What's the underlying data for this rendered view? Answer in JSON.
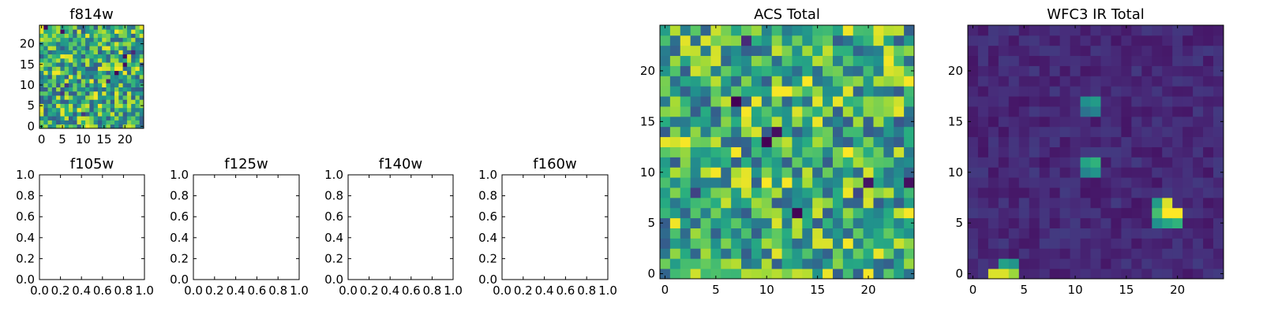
{
  "chart_data": [
    {
      "type": "heatmap",
      "title": "f814w",
      "colormap": "viridis",
      "grid_size": 25,
      "xlim": [
        -0.5,
        24.5
      ],
      "ylim": [
        -0.5,
        24.5
      ],
      "xticks": [
        0,
        5,
        10,
        15,
        20
      ],
      "yticks": [
        0,
        5,
        10,
        15,
        20
      ],
      "pattern": "uniform noise",
      "seed": 814
    },
    {
      "type": "empty",
      "title": "f105w",
      "xlim": [
        0,
        1
      ],
      "ylim": [
        0,
        1
      ],
      "xticks": [
        "0.0",
        "0.2",
        "0.4",
        "0.6",
        "0.8",
        "1.0"
      ],
      "yticks": [
        "0.0",
        "0.2",
        "0.4",
        "0.6",
        "0.8",
        "1.0"
      ]
    },
    {
      "type": "empty",
      "title": "f125w",
      "xlim": [
        0,
        1
      ],
      "ylim": [
        0,
        1
      ],
      "xticks": [
        "0.0",
        "0.2",
        "0.4",
        "0.6",
        "0.8",
        "1.0"
      ],
      "yticks": [
        "0.0",
        "0.2",
        "0.4",
        "0.6",
        "0.8",
        "1.0"
      ]
    },
    {
      "type": "empty",
      "title": "f140w",
      "xlim": [
        0,
        1
      ],
      "ylim": [
        0,
        1
      ],
      "xticks": [
        "0.0",
        "0.2",
        "0.4",
        "0.6",
        "0.8",
        "1.0"
      ],
      "yticks": [
        "0.0",
        "0.2",
        "0.4",
        "0.6",
        "0.8",
        "1.0"
      ]
    },
    {
      "type": "empty",
      "title": "f160w",
      "xlim": [
        0,
        1
      ],
      "ylim": [
        0,
        1
      ],
      "xticks": [
        "0.0",
        "0.2",
        "0.4",
        "0.6",
        "0.8",
        "1.0"
      ],
      "yticks": [
        "0.0",
        "0.2",
        "0.4",
        "0.6",
        "0.8",
        "1.0"
      ]
    },
    {
      "type": "heatmap",
      "title": "ACS Total",
      "colormap": "viridis",
      "grid_size": 25,
      "xlim": [
        -0.5,
        24.5
      ],
      "ylim": [
        -0.5,
        24.5
      ],
      "xticks": [
        0,
        5,
        10,
        15,
        20
      ],
      "yticks": [
        0,
        5,
        10,
        15,
        20
      ],
      "pattern": "uniform noise",
      "seed": 2077
    },
    {
      "type": "heatmap",
      "title": "WFC3 IR Total",
      "colormap": "viridis",
      "grid_size": 25,
      "xlim": [
        -0.5,
        24.5
      ],
      "ylim": [
        -0.5,
        24.5
      ],
      "xticks": [
        0,
        5,
        10,
        15,
        20
      ],
      "yticks": [
        0,
        5,
        10,
        15,
        20
      ],
      "pattern": "low background with point sources",
      "seed": 3160,
      "background_level": 0.12,
      "sources": [
        {
          "x": 12.5,
          "y": 17.5,
          "peak": 0.55,
          "shape": "2x2 block"
        },
        {
          "x": 12.5,
          "y": 11.5,
          "peak": 0.65,
          "shape": "2x2 block"
        },
        {
          "x": 19.0,
          "y": 6.0,
          "peak": 1.0,
          "shape": "plus"
        },
        {
          "x": 3.0,
          "y": 0.5,
          "peak": 0.95,
          "shape": "bar"
        }
      ]
    }
  ]
}
